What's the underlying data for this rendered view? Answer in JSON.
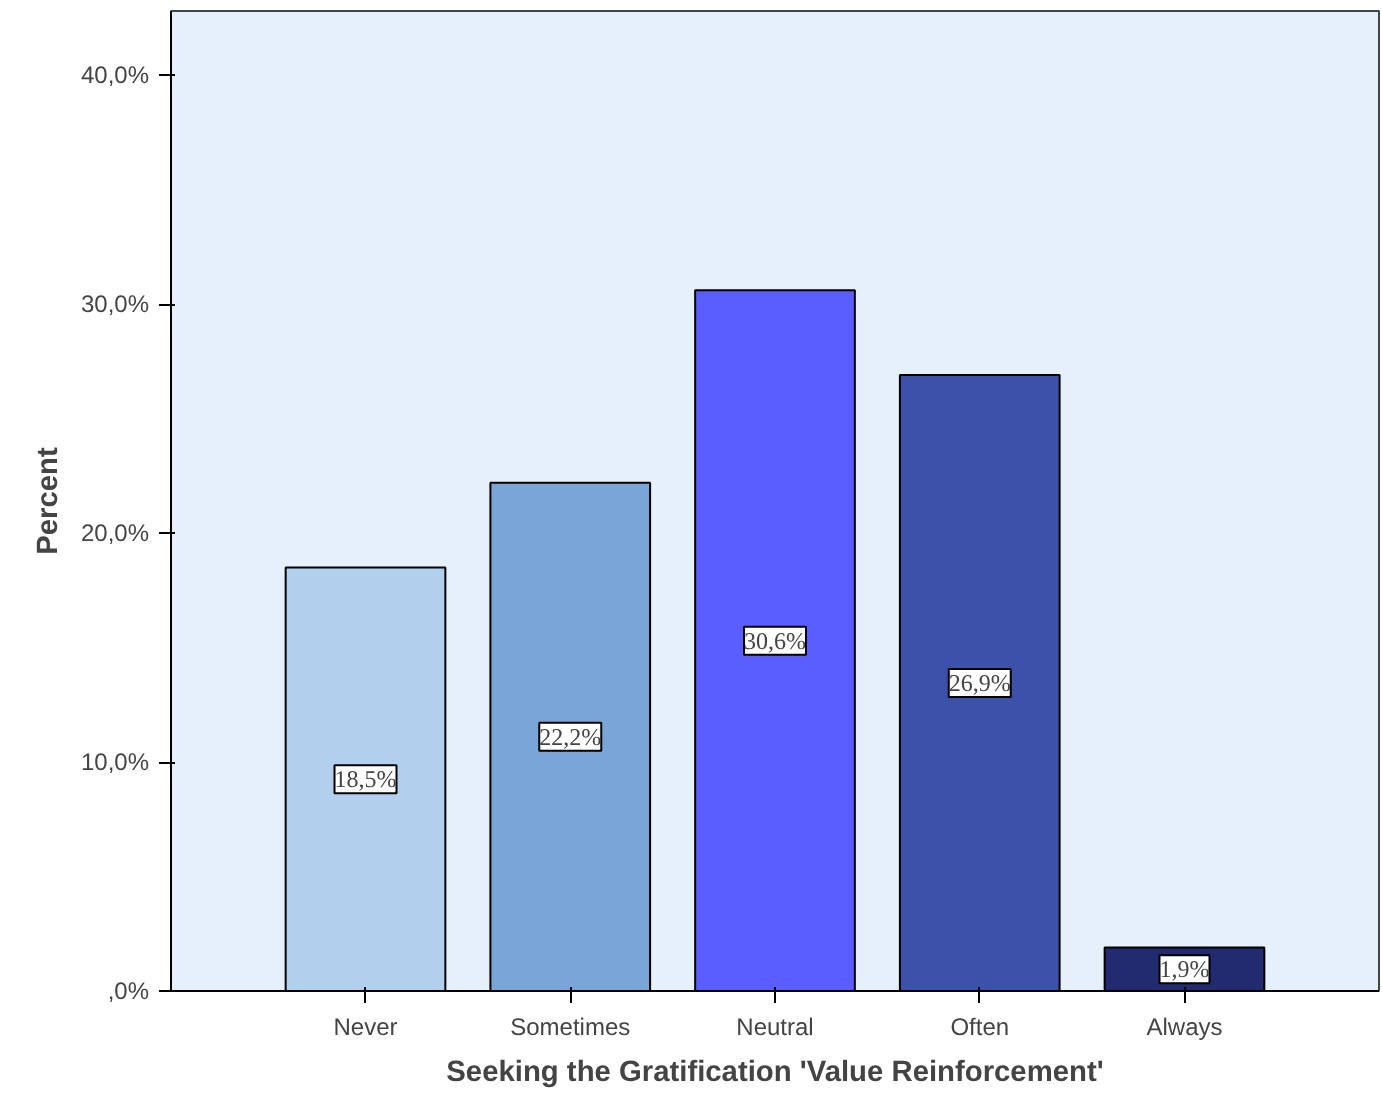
{
  "chart_data": {
    "type": "bar",
    "xlabel": "Seeking the Gratification 'Value Reinforcement'",
    "ylabel": "Percent",
    "categories": [
      "Never",
      "Sometimes",
      "Neutral",
      "Often",
      "Always"
    ],
    "values": [
      18.5,
      22.2,
      30.6,
      26.9,
      1.9
    ],
    "colors": [
      "#b0d0ee",
      "#79a6d6",
      "#5a5eff",
      "#3c52a8",
      "#222a70"
    ],
    "value_labels": [
      "18,5%",
      "22,2%",
      "30,6%",
      "26,9%",
      "1,9%"
    ],
    "ylim": [
      0,
      42.8
    ],
    "yticks": [
      {
        "value": 0,
        "label": ",0%"
      },
      {
        "value": 10,
        "label": "10,0%"
      },
      {
        "value": 20,
        "label": "20,0%"
      },
      {
        "value": 30,
        "label": "30,0%"
      },
      {
        "value": 40,
        "label": "40,0%"
      }
    ],
    "grid": false
  }
}
